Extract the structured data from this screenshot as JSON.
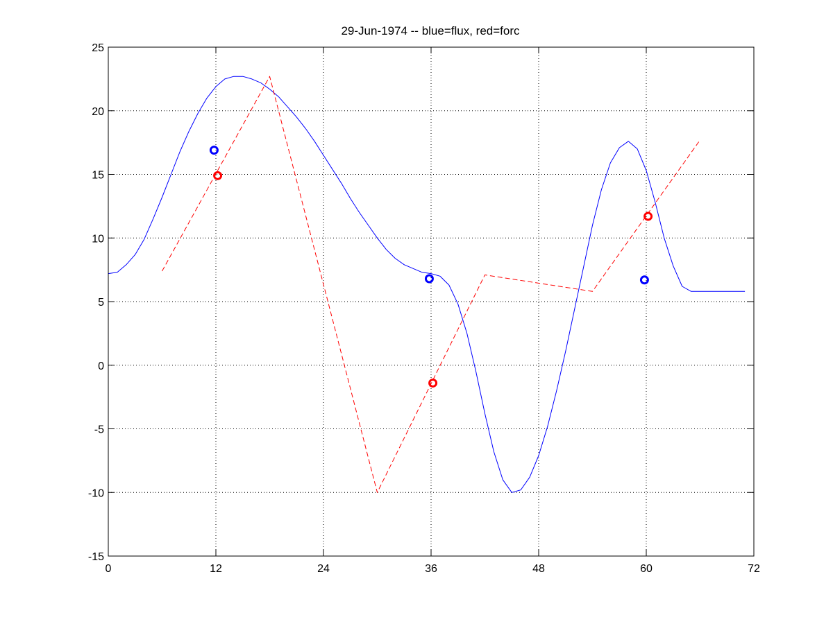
{
  "chart_data": {
    "type": "line",
    "title": "29-Jun-1974 -- blue=flux, red=forc",
    "xlabel": "",
    "ylabel": "",
    "xlim": [
      0,
      72
    ],
    "ylim": [
      -15,
      25
    ],
    "xticks": [
      0,
      12,
      24,
      36,
      48,
      60,
      72
    ],
    "yticks": [
      -15,
      -10,
      -5,
      0,
      5,
      10,
      15,
      20,
      25
    ],
    "xtick_labels": [
      "0",
      "12",
      "24",
      "36",
      "48",
      "60",
      "72"
    ],
    "ytick_labels": [
      "-15",
      "-10",
      "-5",
      "0",
      "5",
      "10",
      "15",
      "20",
      "25"
    ],
    "grid": true,
    "series": [
      {
        "style": "solid-line",
        "color": "#0000ff",
        "x": [
          0,
          1,
          2,
          3,
          4,
          5,
          6,
          7,
          8,
          9,
          10,
          11,
          12,
          13,
          14,
          15,
          16,
          17,
          18,
          19,
          20,
          21,
          22,
          23,
          24,
          25,
          26,
          27,
          28,
          29,
          30,
          31,
          32,
          33,
          34,
          35,
          36,
          37,
          38,
          39,
          40,
          41,
          42,
          43,
          44,
          45,
          46,
          47,
          48,
          49,
          50,
          51,
          52,
          53,
          54,
          55,
          56,
          57,
          58,
          59,
          60,
          61,
          62,
          63,
          64,
          65,
          66,
          67,
          68,
          69,
          70,
          71
        ],
        "y": [
          7.2,
          7.3,
          7.9,
          8.7,
          9.9,
          11.5,
          13.2,
          15.0,
          16.8,
          18.4,
          19.8,
          21.0,
          21.9,
          22.5,
          22.7,
          22.7,
          22.5,
          22.2,
          21.7,
          21.1,
          20.3,
          19.5,
          18.6,
          17.6,
          16.5,
          15.4,
          14.3,
          13.1,
          12.0,
          11.0,
          10.0,
          9.1,
          8.4,
          7.9,
          7.6,
          7.3,
          7.2,
          7.0,
          6.3,
          4.8,
          2.5,
          -0.5,
          -3.8,
          -6.8,
          -9.0,
          -10.0,
          -9.8,
          -8.8,
          -7.1,
          -4.8,
          -2.0,
          1.1,
          4.4,
          7.7,
          11.0,
          13.8,
          15.9,
          17.1,
          17.6,
          17.0,
          15.3,
          12.8,
          10.0,
          7.8,
          6.2,
          5.8,
          5.8,
          5.8,
          5.8,
          5.8,
          5.8,
          5.8
        ]
      },
      {
        "style": "dashed-line",
        "color": "#ff0000",
        "x": [
          6,
          18,
          30,
          42,
          54,
          66
        ],
        "y": [
          7.4,
          22.7,
          -10.0,
          7.1,
          5.8,
          17.7
        ]
      },
      {
        "style": "circle-markers",
        "color": "#0000ff",
        "x": [
          11.8,
          35.8,
          59.8
        ],
        "y": [
          16.9,
          6.8,
          6.7
        ]
      },
      {
        "style": "circle-markers",
        "color": "#ff0000",
        "x": [
          12.2,
          36.2,
          60.2
        ],
        "y": [
          14.9,
          -1.4,
          11.7
        ]
      }
    ]
  }
}
